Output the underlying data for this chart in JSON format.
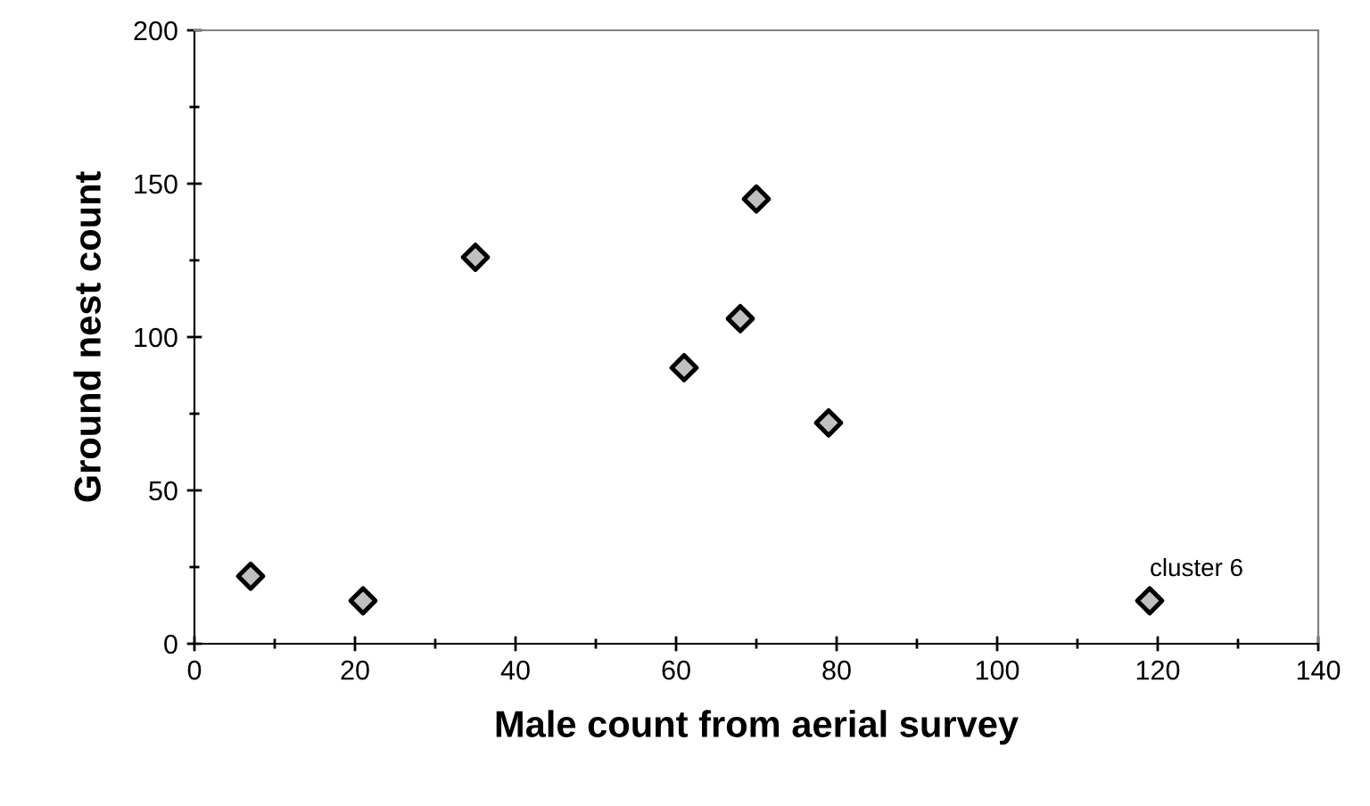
{
  "chart_data": {
    "type": "scatter",
    "xlabel": "Male count from aerial survey",
    "ylabel": "Ground nest count",
    "x": [
      7,
      21,
      35,
      61,
      68,
      70,
      79,
      119
    ],
    "values": [
      22,
      14,
      126,
      90,
      106,
      145,
      72,
      14
    ],
    "color": "#c0c0c0",
    "marker": "diamond",
    "xlim": [
      0,
      140
    ],
    "xticks": [
      0,
      20,
      40,
      60,
      80,
      100,
      120,
      140
    ],
    "ylim": [
      0,
      200
    ],
    "yticks": [
      0,
      50,
      100,
      150,
      200
    ],
    "annotations": [
      {
        "text": "cluster 6",
        "x": 119,
        "y": 14
      }
    ],
    "grid": false,
    "legend": false
  }
}
